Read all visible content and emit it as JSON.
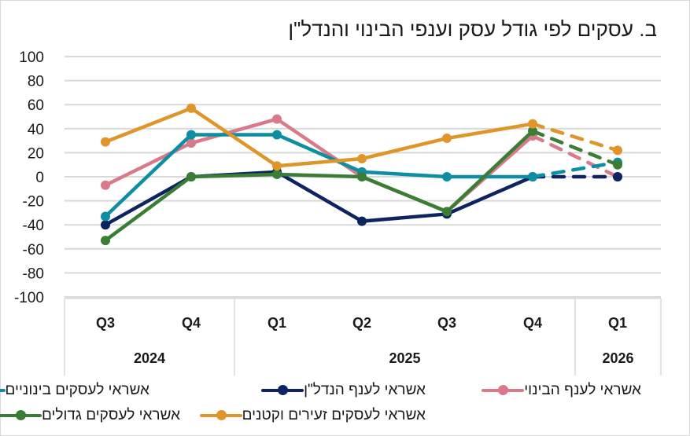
{
  "title": "ב. עסקים לפי גודל עסק וענפי הבינוי והנדל\"ן",
  "chart_data": {
    "type": "line",
    "title": "ב. עסקים לפי גודל עסק וענפי הבינוי והנדל\"ן",
    "xlabel": "",
    "ylabel": "",
    "ylim": [
      -100,
      100
    ],
    "yticks": [
      100,
      80,
      60,
      40,
      20,
      0,
      -20,
      -40,
      -60,
      -80,
      -100
    ],
    "grid": true,
    "x": [
      "Q3",
      "Q4",
      "Q1",
      "Q2",
      "Q3",
      "Q4",
      "Q1"
    ],
    "year_groups": [
      {
        "label": "2024",
        "span": 2
      },
      {
        "label": "2025",
        "span": 4
      },
      {
        "label": "2026",
        "span": 1
      }
    ],
    "forecast_from_index": 5,
    "legend_position": "bottom",
    "series": [
      {
        "name": "אשראי לענף הבינוי",
        "color": "#d97a8b",
        "values": [
          -7,
          28,
          48,
          0,
          -29,
          34,
          0
        ]
      },
      {
        "name": "אשראי לענף הנדל\"ן",
        "color": "#0d2461",
        "values": [
          -40,
          0,
          4,
          -37,
          -31,
          0,
          0
        ]
      },
      {
        "name": "אשראי לעסקים בינוניים",
        "color": "#0e8ea3",
        "values": [
          -33,
          35,
          35,
          4,
          0,
          0,
          12
        ]
      },
      {
        "name": "אשראי לעסקים גדולים",
        "color": "#3a7d35",
        "values": [
          -53,
          0,
          2,
          0,
          -29,
          38,
          10
        ]
      },
      {
        "name": "אשראי לעסקים זעירים וקטנים",
        "color": "#e0952a",
        "values": [
          29,
          57,
          9,
          15,
          32,
          44,
          22
        ]
      }
    ]
  }
}
